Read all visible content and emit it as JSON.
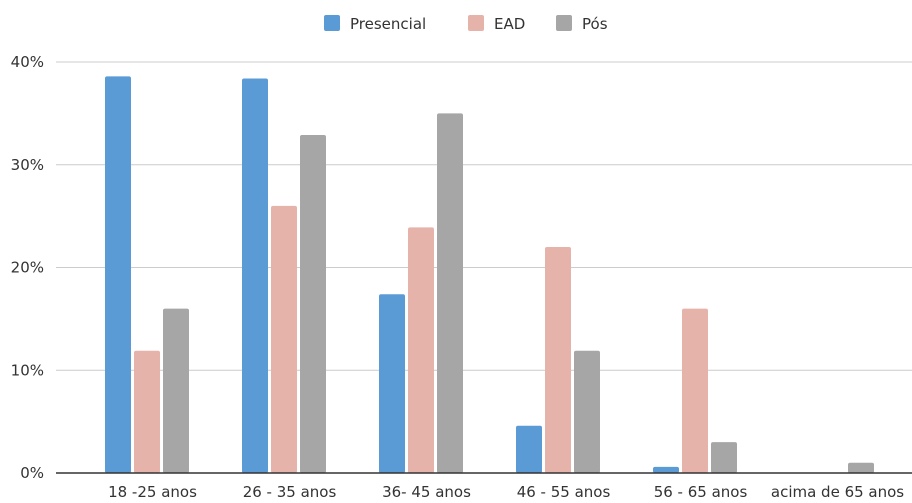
{
  "chart_data": {
    "type": "bar",
    "categories": [
      "18 -25 anos",
      "26 - 35 anos",
      "36- 45 anos",
      "46 - 55 anos",
      "56 - 65 anos",
      "acima de 65 anos"
    ],
    "series": [
      {
        "name": "Presencial",
        "color": "#5b9bd5",
        "values": [
          38.6,
          38.4,
          17.4,
          4.6,
          0.6,
          0
        ]
      },
      {
        "name": "EAD",
        "color": "#e6b3ab",
        "values": [
          11.9,
          26.0,
          23.9,
          22.0,
          16.0,
          0
        ]
      },
      {
        "name": "Pós",
        "color": "#a6a6a6",
        "values": [
          16.0,
          32.9,
          35.0,
          11.9,
          3.0,
          1.0
        ]
      }
    ],
    "ylim": [
      0,
      40
    ],
    "yticks": [
      0,
      10,
      20,
      30,
      40
    ],
    "ytick_labels": [
      "0%",
      "10%",
      "20%",
      "30%",
      "40%"
    ],
    "grid": true,
    "legend_position": "top-center"
  }
}
